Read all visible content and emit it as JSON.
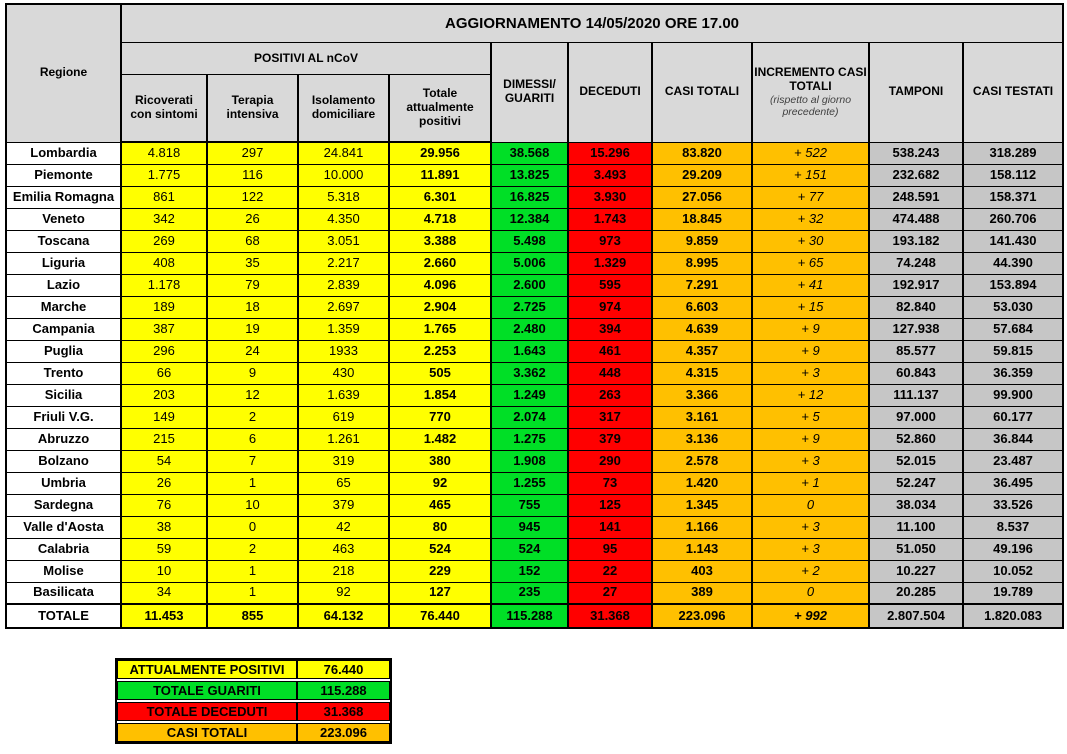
{
  "title": "AGGIORNAMENTO 14/05/2020 ORE 17.00",
  "colors": {
    "yellow": "#FFFF00",
    "green": "#00DF26",
    "red": "#FF0000",
    "orange": "#FFC000",
    "header_grey": "#D9D9D9",
    "cell_grey": "#C6C6C6"
  },
  "table": {
    "region_header": "Regione",
    "positivi_group": "POSITIVI AL nCoV",
    "col_headers": {
      "ricoverati": "Ricoverati con sintomi",
      "terapia": "Terapia intensiva",
      "isolamento": "Isolamento domiciliare",
      "totale_positivi": "Totale attualmente positivi",
      "dimessi": "DIMESSI/ GUARITI",
      "deceduti": "DECEDUTI",
      "casi_totali": "CASI TOTALI",
      "incremento": "INCREMENTO CASI TOTALI",
      "incremento_note": "(rispetto al giorno precedente)",
      "tamponi": "TAMPONI",
      "casi_testati": "CASI TESTATI"
    },
    "rows": [
      {
        "region": "Lombardia",
        "values": [
          "4.818",
          "297",
          "24.841",
          "29.956",
          "38.568",
          "15.296",
          "83.820",
          "+ 522",
          "538.243",
          "318.289"
        ]
      },
      {
        "region": "Piemonte",
        "values": [
          "1.775",
          "116",
          "10.000",
          "11.891",
          "13.825",
          "3.493",
          "29.209",
          "+ 151",
          "232.682",
          "158.112"
        ]
      },
      {
        "region": "Emilia Romagna",
        "values": [
          "861",
          "122",
          "5.318",
          "6.301",
          "16.825",
          "3.930",
          "27.056",
          "+ 77",
          "248.591",
          "158.371"
        ]
      },
      {
        "region": "Veneto",
        "values": [
          "342",
          "26",
          "4.350",
          "4.718",
          "12.384",
          "1.743",
          "18.845",
          "+ 32",
          "474.488",
          "260.706"
        ]
      },
      {
        "region": "Toscana",
        "values": [
          "269",
          "68",
          "3.051",
          "3.388",
          "5.498",
          "973",
          "9.859",
          "+ 30",
          "193.182",
          "141.430"
        ]
      },
      {
        "region": "Liguria",
        "values": [
          "408",
          "35",
          "2.217",
          "2.660",
          "5.006",
          "1.329",
          "8.995",
          "+ 65",
          "74.248",
          "44.390"
        ]
      },
      {
        "region": "Lazio",
        "values": [
          "1.178",
          "79",
          "2.839",
          "4.096",
          "2.600",
          "595",
          "7.291",
          "+ 41",
          "192.917",
          "153.894"
        ]
      },
      {
        "region": "Marche",
        "values": [
          "189",
          "18",
          "2.697",
          "2.904",
          "2.725",
          "974",
          "6.603",
          "+ 15",
          "82.840",
          "53.030"
        ]
      },
      {
        "region": "Campania",
        "values": [
          "387",
          "19",
          "1.359",
          "1.765",
          "2.480",
          "394",
          "4.639",
          "+ 9",
          "127.938",
          "57.684"
        ]
      },
      {
        "region": "Puglia",
        "values": [
          "296",
          "24",
          "1933",
          "2.253",
          "1.643",
          "461",
          "4.357",
          "+ 9",
          "85.577",
          "59.815"
        ]
      },
      {
        "region": "Trento",
        "values": [
          "66",
          "9",
          "430",
          "505",
          "3.362",
          "448",
          "4.315",
          "+ 3",
          "60.843",
          "36.359"
        ]
      },
      {
        "region": "Sicilia",
        "values": [
          "203",
          "12",
          "1.639",
          "1.854",
          "1.249",
          "263",
          "3.366",
          "+ 12",
          "111.137",
          "99.900"
        ]
      },
      {
        "region": "Friuli V.G.",
        "values": [
          "149",
          "2",
          "619",
          "770",
          "2.074",
          "317",
          "3.161",
          "+ 5",
          "97.000",
          "60.177"
        ]
      },
      {
        "region": "Abruzzo",
        "values": [
          "215",
          "6",
          "1.261",
          "1.482",
          "1.275",
          "379",
          "3.136",
          "+ 9",
          "52.860",
          "36.844"
        ]
      },
      {
        "region": "Bolzano",
        "values": [
          "54",
          "7",
          "319",
          "380",
          "1.908",
          "290",
          "2.578",
          "+ 3",
          "52.015",
          "23.487"
        ]
      },
      {
        "region": "Umbria",
        "values": [
          "26",
          "1",
          "65",
          "92",
          "1.255",
          "73",
          "1.420",
          "+ 1",
          "52.247",
          "36.495"
        ]
      },
      {
        "region": "Sardegna",
        "values": [
          "76",
          "10",
          "379",
          "465",
          "755",
          "125",
          "1.345",
          "0",
          "38.034",
          "33.526"
        ]
      },
      {
        "region": "Valle d'Aosta",
        "values": [
          "38",
          "0",
          "42",
          "80",
          "945",
          "141",
          "1.166",
          "+ 3",
          "11.100",
          "8.537"
        ]
      },
      {
        "region": "Calabria",
        "values": [
          "59",
          "2",
          "463",
          "524",
          "524",
          "95",
          "1.143",
          "+ 3",
          "51.050",
          "49.196"
        ]
      },
      {
        "region": "Molise",
        "values": [
          "10",
          "1",
          "218",
          "229",
          "152",
          "22",
          "403",
          "+ 2",
          "10.227",
          "10.052"
        ]
      },
      {
        "region": "Basilicata",
        "values": [
          "34",
          "1",
          "92",
          "127",
          "235",
          "27",
          "389",
          "0",
          "20.285",
          "19.789"
        ]
      }
    ],
    "total_row": {
      "region": "TOTALE",
      "values": [
        "11.453",
        "855",
        "64.132",
        "76.440",
        "115.288",
        "31.368",
        "223.096",
        "+ 992",
        "2.807.504",
        "1.820.083"
      ]
    }
  },
  "summary": {
    "rows": [
      {
        "label": "ATTUALMENTE POSITIVI",
        "value": "76.440",
        "color": "yellow"
      },
      {
        "label": "TOTALE GUARITI",
        "value": "115.288",
        "color": "green"
      },
      {
        "label": "TOTALE DECEDUTI",
        "value": "31.368",
        "color": "red"
      },
      {
        "label": "CASI TOTALI",
        "value": "223.096",
        "color": "orange"
      }
    ]
  }
}
